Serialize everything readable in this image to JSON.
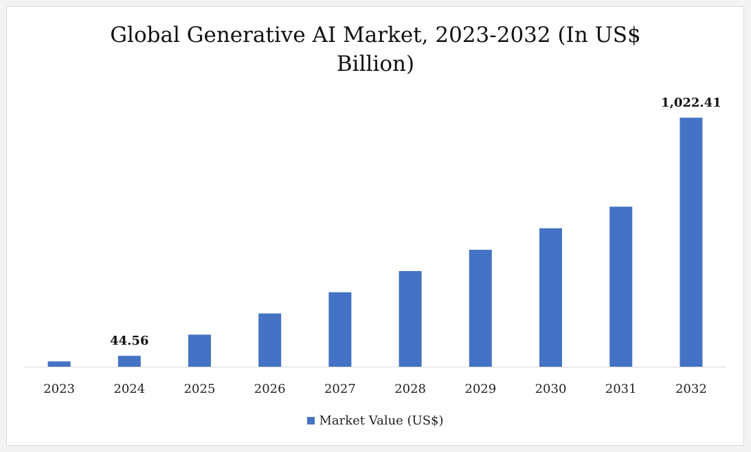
{
  "colors": {
    "bar": "#4472c4",
    "axis": "#d9d9d9",
    "text": "#111111",
    "background": "#ffffff"
  },
  "chart_data": {
    "type": "bar",
    "title": "Global Generative AI Market, 2023-2032 (In US$ Billion)",
    "xlabel": "",
    "ylabel": "",
    "categories": [
      "2023",
      "2024",
      "2025",
      "2026",
      "2027",
      "2028",
      "2029",
      "2030",
      "2031",
      "2032"
    ],
    "series": [
      {
        "name": "Market Value (US$)",
        "values": [
          21.87,
          44.56,
          131.6,
          218.6,
          305.8,
          392.7,
          480.1,
          568.4,
          657.2,
          1022.41
        ]
      }
    ],
    "value_labels": [
      "",
      "44.56",
      "",
      "",
      "",
      "",
      "",
      "",
      "",
      "1,022.41"
    ],
    "ylim": [
      0,
      1130
    ],
    "grid": false,
    "legend": "bottom"
  }
}
